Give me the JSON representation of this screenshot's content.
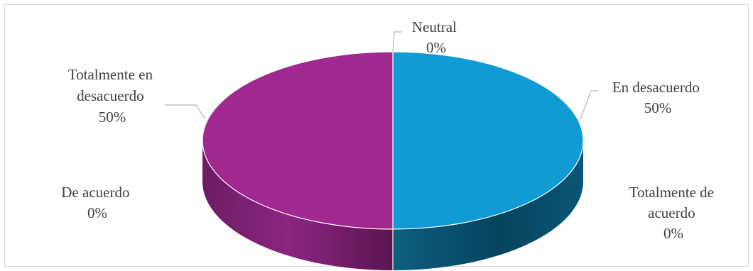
{
  "chart_data": {
    "type": "pie",
    "style": "3d",
    "title": "",
    "legend": "none",
    "slices": [
      {
        "name": "Neutral",
        "value": 0,
        "percent_label": "0%",
        "color": ""
      },
      {
        "name": "En desacuerdo",
        "value": 50,
        "percent_label": "50%",
        "color": "#119bd4"
      },
      {
        "name": "Totalmente de acuerdo",
        "value": 0,
        "percent_label": "0%",
        "color": ""
      },
      {
        "name": "De acuerdo",
        "value": 0,
        "percent_label": "0%",
        "color": ""
      },
      {
        "name": "Totalmente en desacuerdo",
        "value": 50,
        "percent_label": "50%",
        "color": "#a0288f"
      }
    ],
    "label_lines": {
      "neutral": [
        "Neutral",
        "0%"
      ],
      "en_desacuerdo": [
        "En desacuerdo",
        "50%"
      ],
      "totalmente_de_acuerdo": [
        "Totalmente de",
        "acuerdo",
        "0%"
      ],
      "de_acuerdo": [
        "De acuerdo",
        "0%"
      ],
      "totalmente_en_desacuerdo": [
        "Totalmente en",
        "desacuerdo",
        "50%"
      ]
    }
  }
}
